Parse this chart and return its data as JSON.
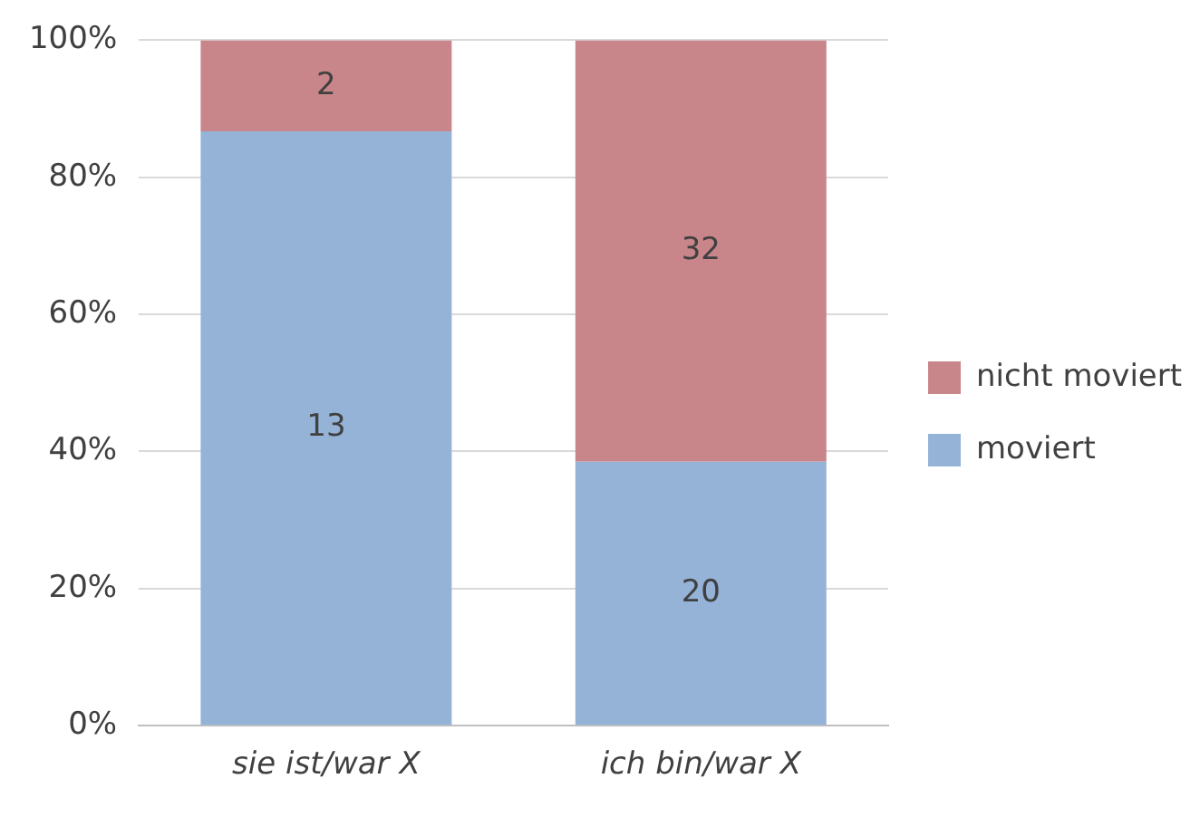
{
  "chart_data": {
    "type": "bar",
    "stacked": true,
    "categories": [
      "sie ist/war X",
      "ich bin/war X"
    ],
    "series": [
      {
        "name": "moviert",
        "color": "#95b3d7",
        "values": [
          86.7,
          38.5
        ]
      },
      {
        "name": "nicht moviert",
        "color": "#c9868a",
        "values": [
          13.3,
          61.5
        ]
      }
    ],
    "annotations": [
      "13",
      "20",
      "2",
      "32"
    ],
    "ylim": [
      0,
      100
    ],
    "yticks": [
      {
        "value": 0,
        "label": "0%"
      },
      {
        "value": 20,
        "label": "20%"
      },
      {
        "value": 40,
        "label": "40%"
      },
      {
        "value": 60,
        "label": "60%"
      },
      {
        "value": 80,
        "label": "80%"
      },
      {
        "value": 100,
        "label": "100%"
      }
    ],
    "grid": "y",
    "legend": "right"
  }
}
